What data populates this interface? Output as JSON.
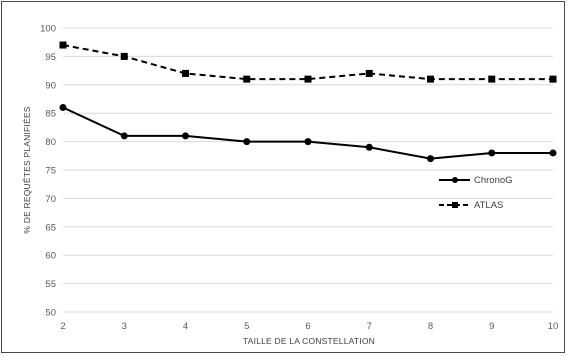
{
  "chart_data": {
    "type": "line",
    "title": "",
    "xlabel": "TAILLE DE LA CONSTELLATION",
    "ylabel": "% DE REQUÊTES PLANIFIÉES",
    "x": [
      2,
      3,
      4,
      5,
      6,
      7,
      8,
      9,
      10
    ],
    "xticks": [
      "2",
      "3",
      "4",
      "5",
      "6",
      "7",
      "8",
      "9",
      "10"
    ],
    "yticks": [
      "50",
      "55",
      "60",
      "65",
      "70",
      "75",
      "80",
      "85",
      "90",
      "95",
      "100"
    ],
    "ylim": [
      50,
      100
    ],
    "grid": "horizontal",
    "legend_position": "right",
    "series": [
      {
        "name": "ChronoG",
        "values": [
          86,
          81,
          81,
          80,
          80,
          79,
          77,
          78,
          78
        ],
        "marker": "circle",
        "line_style": "solid",
        "color": "#000000"
      },
      {
        "name": "ATLAS",
        "values": [
          97,
          95,
          92,
          91,
          91,
          92,
          91,
          91,
          91
        ],
        "marker": "square",
        "line_style": "dashed",
        "color": "#000000"
      }
    ]
  }
}
